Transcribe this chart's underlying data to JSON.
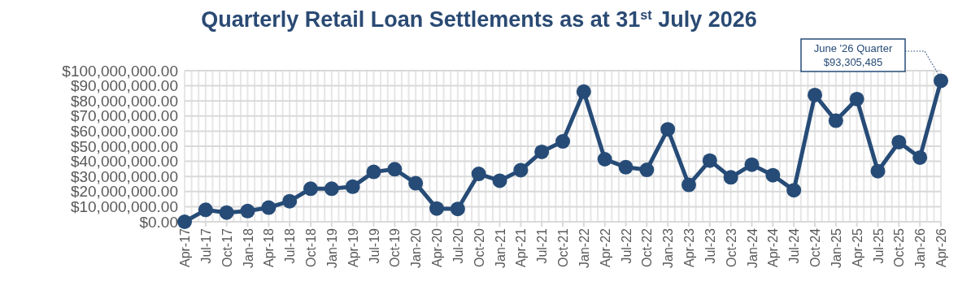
{
  "chart_data": {
    "type": "line",
    "title": "Quarterly Retail Loan Settlements as at 31$^{st}$ July 2026",
    "categories": [
      "Apr-17",
      "Jul-17",
      "Oct-17",
      "Jan-18",
      "Apr-18",
      "Jul-18",
      "Oct-18",
      "Jan-19",
      "Apr-19",
      "Jul-19",
      "Oct-19",
      "Jan-20",
      "Apr-20",
      "Jul-20",
      "Oct-20",
      "Jan-21",
      "Apr-21",
      "Jul-21",
      "Oct-21",
      "Jan-22",
      "Apr-22",
      "Jul-22",
      "Oct-22",
      "Jan-23",
      "Apr-23",
      "Jul-23",
      "Oct-23",
      "Jan-24",
      "Apr-24",
      "Jul-24",
      "Oct-24",
      "Jan-25",
      "Apr-25",
      "Jul-25",
      "Oct-25",
      "Jan-26",
      "Apr-26"
    ],
    "series": [
      {
        "color": "#264b77",
        "values": [
          0,
          7900000,
          6100000,
          7100000,
          9400000,
          13600000,
          21900000,
          21900000,
          23200000,
          33000000,
          34800000,
          25500000,
          8800000,
          8500000,
          31700000,
          27200000,
          34200000,
          46300000,
          53200000,
          86100000,
          41400000,
          36100000,
          34400000,
          61200000,
          24400000,
          40500000,
          29400000,
          37800000,
          30800000,
          20900000,
          83900000,
          66900000,
          81200000,
          33500000,
          52700000,
          42500000,
          93305485
        ]
      }
    ],
    "ylim": [
      0,
      100000000
    ],
    "yticks": [
      {
        "value": 0,
        "label": "$0.00"
      },
      {
        "value": 10000000,
        "label": "$10,000,000.00"
      },
      {
        "value": 20000000,
        "label": "$20,000,000.00"
      },
      {
        "value": 30000000,
        "label": "$30,000,000.00"
      },
      {
        "value": 40000000,
        "label": "$40,000,000.00"
      },
      {
        "value": 50000000,
        "label": "$50,000,000.00"
      },
      {
        "value": 60000000,
        "label": "$60,000,000.00"
      },
      {
        "value": 70000000,
        "label": "$70,000,000.00"
      },
      {
        "value": 80000000,
        "label": "$80,000,000.00"
      },
      {
        "value": 90000000,
        "label": "$90,000,000.00"
      },
      {
        "value": 100000000,
        "label": "$100,000,000.00"
      }
    ],
    "grid": true,
    "marker": "circle",
    "line_style": "solid",
    "annotations": [
      {
        "text": "June '26 Quarter\n$93,305,485",
        "x": "Apr-26",
        "y": 93305485
      }
    ]
  }
}
